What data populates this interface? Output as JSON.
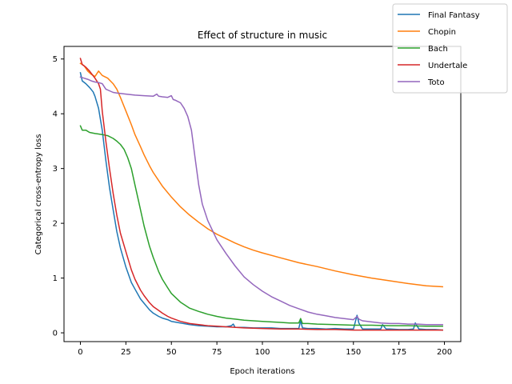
{
  "chart_data": {
    "type": "line",
    "title": "Effect of structure in music",
    "xlabel": "Epoch iterations",
    "ylabel": "Categorical cross-entropy loss",
    "xlim": [
      -9,
      209
    ],
    "ylim": [
      -0.16,
      5.23
    ],
    "xticks": [
      0,
      25,
      50,
      75,
      100,
      125,
      150,
      175,
      200
    ],
    "yticks": [
      0,
      1,
      2,
      3,
      4,
      5
    ],
    "grid": false,
    "legend_position": "top-right",
    "series": [
      {
        "name": "Final Fantasy",
        "color": "#1f77b4",
        "x": [
          0,
          1,
          3,
          5,
          7,
          8,
          10,
          12,
          14,
          16,
          18,
          20,
          22,
          25,
          28,
          30,
          33,
          35,
          38,
          40,
          43,
          45,
          48,
          50,
          55,
          60,
          65,
          70,
          75,
          80,
          83,
          84,
          85,
          90,
          95,
          100,
          105,
          110,
          115,
          120,
          121,
          122,
          125,
          130,
          135,
          140,
          145,
          150,
          152,
          153,
          155,
          160,
          165,
          166,
          168,
          170,
          175,
          180,
          183,
          184,
          186,
          190,
          195,
          199
        ],
        "y": [
          4.75,
          4.6,
          4.55,
          4.48,
          4.4,
          4.32,
          4.1,
          3.7,
          3.15,
          2.65,
          2.25,
          1.85,
          1.55,
          1.2,
          0.92,
          0.8,
          0.62,
          0.54,
          0.42,
          0.36,
          0.3,
          0.27,
          0.24,
          0.21,
          0.18,
          0.15,
          0.13,
          0.12,
          0.11,
          0.11,
          0.13,
          0.16,
          0.1,
          0.1,
          0.09,
          0.09,
          0.09,
          0.08,
          0.08,
          0.08,
          0.22,
          0.09,
          0.08,
          0.08,
          0.07,
          0.08,
          0.07,
          0.07,
          0.32,
          0.18,
          0.07,
          0.07,
          0.07,
          0.15,
          0.07,
          0.07,
          0.06,
          0.06,
          0.07,
          0.18,
          0.07,
          0.06,
          0.06,
          0.05
        ]
      },
      {
        "name": "Chopin",
        "color": "#ff7f0e",
        "x": [
          0,
          2,
          4,
          6,
          8,
          10,
          12,
          15,
          18,
          20,
          22,
          25,
          28,
          30,
          33,
          35,
          38,
          40,
          45,
          50,
          55,
          60,
          65,
          70,
          75,
          80,
          85,
          90,
          95,
          100,
          110,
          120,
          130,
          140,
          150,
          160,
          170,
          180,
          190,
          199
        ],
        "y": [
          4.92,
          4.88,
          4.78,
          4.72,
          4.68,
          4.78,
          4.7,
          4.65,
          4.55,
          4.45,
          4.3,
          4.05,
          3.8,
          3.62,
          3.4,
          3.25,
          3.05,
          2.93,
          2.68,
          2.48,
          2.3,
          2.15,
          2.02,
          1.9,
          1.8,
          1.72,
          1.64,
          1.57,
          1.51,
          1.46,
          1.37,
          1.28,
          1.21,
          1.13,
          1.06,
          1.0,
          0.95,
          0.9,
          0.86,
          0.84
        ]
      },
      {
        "name": "Bach",
        "color": "#2ca02c",
        "x": [
          0,
          1,
          3,
          5,
          8,
          10,
          12,
          15,
          18,
          20,
          22,
          24,
          26,
          28,
          30,
          32,
          35,
          38,
          40,
          43,
          45,
          48,
          50,
          55,
          60,
          65,
          70,
          75,
          80,
          85,
          90,
          95,
          100,
          105,
          110,
          115,
          120,
          121,
          122,
          125,
          130,
          140,
          150,
          160,
          170,
          180,
          190,
          199
        ],
        "y": [
          3.78,
          3.7,
          3.7,
          3.66,
          3.64,
          3.63,
          3.62,
          3.6,
          3.55,
          3.5,
          3.44,
          3.35,
          3.2,
          3.0,
          2.7,
          2.4,
          1.95,
          1.58,
          1.38,
          1.12,
          0.98,
          0.82,
          0.72,
          0.56,
          0.45,
          0.39,
          0.34,
          0.3,
          0.27,
          0.25,
          0.23,
          0.22,
          0.21,
          0.2,
          0.19,
          0.18,
          0.18,
          0.26,
          0.17,
          0.17,
          0.16,
          0.15,
          0.14,
          0.14,
          0.13,
          0.13,
          0.12,
          0.12
        ]
      },
      {
        "name": "Undertale",
        "color": "#d62728",
        "x": [
          0,
          1,
          3,
          5,
          8,
          10,
          11,
          12,
          14,
          16,
          18,
          20,
          22,
          25,
          28,
          30,
          33,
          35,
          38,
          40,
          43,
          45,
          48,
          50,
          55,
          60,
          65,
          70,
          75,
          80,
          90,
          100,
          110,
          120,
          130,
          140,
          150,
          160,
          170,
          180,
          190,
          199
        ],
        "y": [
          5.01,
          4.9,
          4.85,
          4.78,
          4.65,
          4.55,
          4.45,
          4.05,
          3.5,
          3.0,
          2.55,
          2.15,
          1.82,
          1.48,
          1.15,
          0.98,
          0.78,
          0.68,
          0.55,
          0.48,
          0.41,
          0.36,
          0.3,
          0.27,
          0.21,
          0.17,
          0.15,
          0.13,
          0.12,
          0.11,
          0.09,
          0.08,
          0.07,
          0.07,
          0.06,
          0.06,
          0.05,
          0.05,
          0.05,
          0.05,
          0.05,
          0.05
        ]
      },
      {
        "name": "Toto",
        "color": "#9467bd",
        "x": [
          0,
          2,
          4,
          6,
          8,
          10,
          12,
          14,
          16,
          18,
          20,
          25,
          30,
          35,
          40,
          42,
          43,
          45,
          48,
          50,
          51,
          52,
          55,
          57,
          59,
          61,
          63,
          65,
          67,
          70,
          75,
          80,
          85,
          90,
          95,
          100,
          105,
          110,
          115,
          120,
          125,
          130,
          135,
          140,
          145,
          150,
          152,
          153,
          155,
          160,
          165,
          170,
          175,
          180,
          185,
          190,
          195,
          199
        ],
        "y": [
          4.67,
          4.65,
          4.63,
          4.6,
          4.58,
          4.57,
          4.55,
          4.45,
          4.42,
          4.39,
          4.38,
          4.36,
          4.34,
          4.33,
          4.32,
          4.36,
          4.32,
          4.31,
          4.3,
          4.33,
          4.26,
          4.25,
          4.2,
          4.1,
          3.95,
          3.7,
          3.2,
          2.7,
          2.35,
          2.05,
          1.7,
          1.45,
          1.22,
          1.02,
          0.88,
          0.76,
          0.66,
          0.58,
          0.5,
          0.44,
          0.38,
          0.34,
          0.31,
          0.28,
          0.26,
          0.24,
          0.3,
          0.25,
          0.22,
          0.2,
          0.18,
          0.17,
          0.17,
          0.16,
          0.16,
          0.15,
          0.15,
          0.15
        ]
      }
    ]
  }
}
